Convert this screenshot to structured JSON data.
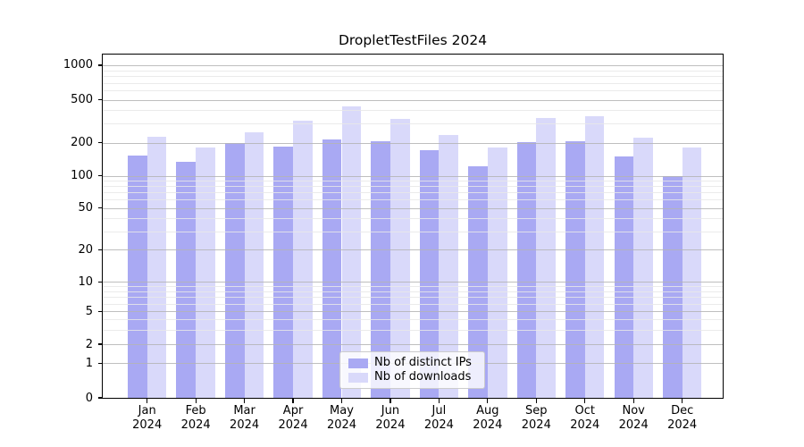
{
  "chart_data": {
    "type": "bar",
    "title": "DropletTestFiles 2024",
    "categories": [
      "Jan",
      "Feb",
      "Mar",
      "Apr",
      "May",
      "Jun",
      "Jul",
      "Aug",
      "Sep",
      "Oct",
      "Nov",
      "Dec"
    ],
    "x_tick_year_line": "2024",
    "series": [
      {
        "name": "Nb of distinct IPs",
        "color": "#a9a9f3",
        "values": [
          152,
          133,
          198,
          185,
          214,
          207,
          170,
          121,
          202,
          206,
          149,
          100
        ]
      },
      {
        "name": "Nb of downloads",
        "color": "#d9d9fa",
        "values": [
          228,
          182,
          250,
          318,
          435,
          333,
          237,
          182,
          340,
          350,
          222,
          180
        ]
      }
    ],
    "yscale": "symlog",
    "ylim": [
      0,
      1250
    ],
    "ytick_values": [
      0,
      1,
      2,
      5,
      10,
      20,
      50,
      100,
      200,
      500,
      1000
    ],
    "ytick_labels": [
      "0",
      "1",
      "2",
      "5",
      "10",
      "20",
      "50",
      "100",
      "200",
      "500",
      "1000"
    ],
    "minor_gridline_values": [
      3,
      4,
      6,
      7,
      8,
      9,
      30,
      40,
      60,
      70,
      80,
      90,
      300,
      400,
      600,
      700,
      800,
      900
    ],
    "axis_anchor_fractions": [
      [
        0,
        1.0
      ],
      [
        1,
        0.899
      ],
      [
        2,
        0.844
      ],
      [
        5,
        0.748
      ],
      [
        10,
        0.662
      ],
      [
        20,
        0.569
      ],
      [
        50,
        0.447
      ],
      [
        100,
        0.353
      ],
      [
        200,
        0.257
      ],
      [
        500,
        0.132
      ],
      [
        1000,
        0.031
      ]
    ],
    "grid": true,
    "legend_position": "lower center",
    "colors": {
      "bar_distinct_ips": "#a9a9f3",
      "bar_downloads": "#d9d9fa",
      "grid_major": "#b4b4b4",
      "grid_minor": "#e7e7e7",
      "axis": "#000000",
      "legend_border": "#cccccc"
    }
  }
}
